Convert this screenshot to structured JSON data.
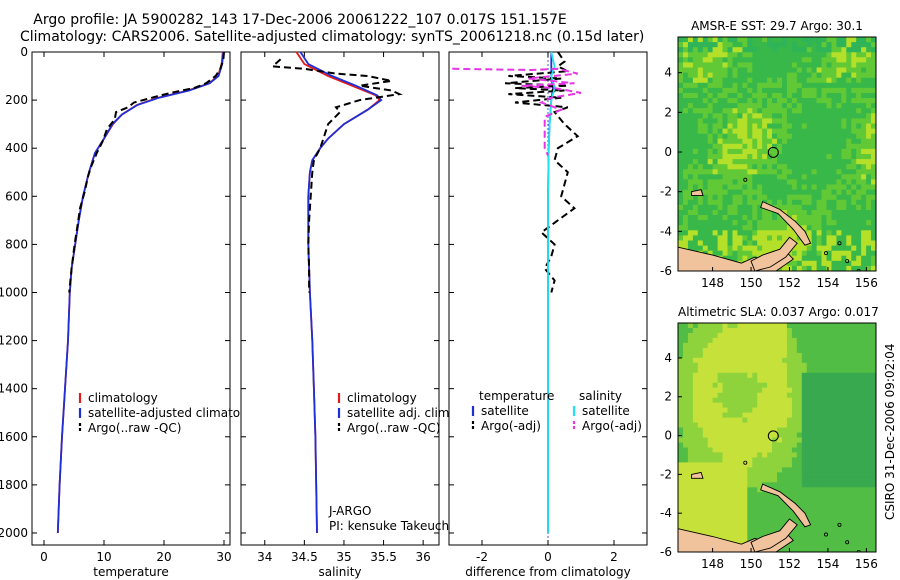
{
  "figure": {
    "title_line1": "Argo profile: JA 5900282_143 17-Dec-2006 20061222_107 0.017S 151.157E",
    "title_line2": "Climatology: CARS2006. Satellite-adjusted climatology: synTS_20061218.nc (0.15d later)",
    "footer": "CSIRO 31-Dec-2006 09:02:04"
  },
  "colors": {
    "climatology": "#e41a1c",
    "satellite": "#1f2fd6",
    "argo": "#000000",
    "salinity_satellite": "#1ee6ee",
    "salinity_argo": "#e635e6",
    "land": "#f0c39c"
  },
  "chart_data": [
    {
      "id": "temperature",
      "type": "line",
      "xlabel": "temperature",
      "ylabel": "",
      "xlim": [
        -2,
        31
      ],
      "ylim": [
        2050,
        0
      ],
      "x_ticks": [
        0,
        10,
        20,
        30
      ],
      "y_ticks": [
        0,
        200,
        400,
        600,
        800,
        1000,
        1200,
        1400,
        1600,
        1800,
        2000
      ],
      "legend": [
        {
          "label": "climatology",
          "color": "#e41a1c",
          "style": "solid"
        },
        {
          "label": "satellite-adjusted climatology",
          "color": "#1f2fd6",
          "style": "solid"
        },
        {
          "label": "Argo(..raw -QC)",
          "color": "#000000",
          "style": "dashed"
        }
      ],
      "series": [
        {
          "name": "climatology",
          "color": "#e41a1c",
          "dash": false,
          "points": [
            [
              29.8,
              0
            ],
            [
              29.6,
              50
            ],
            [
              29.0,
              100
            ],
            [
              27.5,
              130
            ],
            [
              24.0,
              160
            ],
            [
              19.0,
              190
            ],
            [
              15.5,
              220
            ],
            [
              13.0,
              260
            ],
            [
              11.5,
              300
            ],
            [
              10.0,
              360
            ],
            [
              8.5,
              420
            ],
            [
              7.5,
              500
            ],
            [
              6.5,
              600
            ],
            [
              5.8,
              700
            ],
            [
              5.2,
              800
            ],
            [
              4.6,
              900
            ],
            [
              4.3,
              1000
            ],
            [
              4.0,
              1200
            ],
            [
              3.5,
              1400
            ],
            [
              3.0,
              1600
            ],
            [
              2.6,
              1800
            ],
            [
              2.3,
              2000
            ]
          ]
        },
        {
          "name": "satellite-adjusted climatology",
          "color": "#1f2fd6",
          "dash": false,
          "points": [
            [
              29.9,
              0
            ],
            [
              29.7,
              50
            ],
            [
              29.1,
              100
            ],
            [
              27.6,
              130
            ],
            [
              24.2,
              160
            ],
            [
              19.2,
              190
            ],
            [
              15.6,
              220
            ],
            [
              13.0,
              260
            ],
            [
              11.4,
              300
            ],
            [
              10.0,
              360
            ],
            [
              8.5,
              420
            ],
            [
              7.5,
              500
            ],
            [
              6.5,
              600
            ],
            [
              5.8,
              700
            ],
            [
              5.2,
              800
            ],
            [
              4.6,
              900
            ],
            [
              4.3,
              1000
            ],
            [
              4.0,
              1200
            ],
            [
              3.5,
              1400
            ],
            [
              3.0,
              1600
            ],
            [
              2.6,
              1800
            ],
            [
              2.3,
              2000
            ]
          ]
        },
        {
          "name": "Argo(..raw -QC)",
          "color": "#000000",
          "dash": true,
          "points": [
            [
              30.0,
              0
            ],
            [
              29.9,
              30
            ],
            [
              29.4,
              70
            ],
            [
              28.6,
              100
            ],
            [
              27.0,
              130
            ],
            [
              25.0,
              150
            ],
            [
              22.0,
              165
            ],
            [
              19.5,
              180
            ],
            [
              15.0,
              210
            ],
            [
              14.0,
              230
            ],
            [
              12.0,
              250
            ],
            [
              11.8,
              280
            ],
            [
              10.5,
              320
            ],
            [
              9.8,
              370
            ],
            [
              8.8,
              420
            ],
            [
              7.8,
              480
            ],
            [
              7.3,
              520
            ],
            [
              6.8,
              580
            ],
            [
              6.0,
              650
            ],
            [
              5.6,
              720
            ],
            [
              5.1,
              800
            ],
            [
              4.6,
              900
            ],
            [
              4.2,
              1000
            ]
          ]
        }
      ]
    },
    {
      "id": "salinity",
      "type": "line",
      "xlabel": "salinity",
      "ylabel": "",
      "xlim": [
        33.7,
        36.2
      ],
      "ylim": [
        2050,
        0
      ],
      "x_ticks": [
        34,
        34.5,
        35,
        35.5,
        36
      ],
      "x_tick_labels": [
        "34",
        "34.5",
        "35",
        "35.5",
        "36"
      ],
      "legend": [
        {
          "label": "climatology",
          "color": "#e41a1c",
          "style": "solid"
        },
        {
          "label": "satellite adj. clim.",
          "color": "#1f2fd6",
          "style": "solid"
        },
        {
          "label": "Argo(..raw -QC)",
          "color": "#000000",
          "style": "dashed"
        }
      ],
      "annotation_line1": "J-ARGO",
      "annotation_line2": "PI: kensuke Takeuchi",
      "series": [
        {
          "name": "climatology",
          "color": "#e41a1c",
          "dash": false,
          "points": [
            [
              34.4,
              0
            ],
            [
              34.5,
              50
            ],
            [
              34.8,
              100
            ],
            [
              35.1,
              140
            ],
            [
              35.4,
              180
            ],
            [
              35.45,
              200
            ],
            [
              35.3,
              240
            ],
            [
              35.0,
              300
            ],
            [
              34.8,
              360
            ],
            [
              34.7,
              400
            ],
            [
              34.6,
              450
            ],
            [
              34.57,
              500
            ],
            [
              34.55,
              600
            ],
            [
              34.55,
              800
            ],
            [
              34.57,
              1000
            ],
            [
              34.6,
              1200
            ],
            [
              34.62,
              1400
            ],
            [
              34.64,
              1600
            ],
            [
              34.65,
              1800
            ],
            [
              34.66,
              2000
            ]
          ]
        },
        {
          "name": "satellite adj. clim.",
          "color": "#1f2fd6",
          "dash": false,
          "points": [
            [
              34.45,
              0
            ],
            [
              34.55,
              50
            ],
            [
              34.85,
              100
            ],
            [
              35.15,
              140
            ],
            [
              35.42,
              180
            ],
            [
              35.47,
              200
            ],
            [
              35.3,
              240
            ],
            [
              35.0,
              300
            ],
            [
              34.8,
              360
            ],
            [
              34.7,
              400
            ],
            [
              34.6,
              450
            ],
            [
              34.57,
              500
            ],
            [
              34.55,
              600
            ],
            [
              34.55,
              800
            ],
            [
              34.57,
              1000
            ],
            [
              34.6,
              1200
            ],
            [
              34.62,
              1400
            ],
            [
              34.64,
              1600
            ],
            [
              34.65,
              1800
            ],
            [
              34.66,
              2000
            ]
          ]
        },
        {
          "name": "Argo(..raw -QC)",
          "color": "#000000",
          "dash": true,
          "points": [
            [
              34.2,
              30
            ],
            [
              34.1,
              60
            ],
            [
              34.5,
              70
            ],
            [
              34.9,
              90
            ],
            [
              35.3,
              100
            ],
            [
              35.6,
              120
            ],
            [
              35.2,
              140
            ],
            [
              35.6,
              160
            ],
            [
              35.7,
              175
            ],
            [
              35.2,
              200
            ],
            [
              34.9,
              230
            ],
            [
              34.95,
              250
            ],
            [
              34.8,
              300
            ],
            [
              34.75,
              350
            ],
            [
              34.7,
              400
            ],
            [
              34.62,
              450
            ],
            [
              34.6,
              500
            ],
            [
              34.58,
              600
            ],
            [
              34.56,
              700
            ],
            [
              34.55,
              800
            ],
            [
              34.56,
              900
            ],
            [
              34.56,
              1000
            ]
          ]
        }
      ]
    },
    {
      "id": "difference",
      "type": "line",
      "xlabel": "difference from climatology",
      "ylabel": "",
      "xlim": [
        -3,
        3
      ],
      "ylim": [
        2050,
        0
      ],
      "x_ticks": [
        -2,
        0,
        2
      ],
      "legend_left_title": "temperature",
      "legend_right_title": "salinity",
      "legend": [
        {
          "label": "satellite",
          "color": "#1f2fd6",
          "style": "solid"
        },
        {
          "label": "Argo(-adj)",
          "color": "#000000",
          "style": "dashed"
        },
        {
          "label": "satellite",
          "color": "#1ee6ee",
          "style": "solid"
        },
        {
          "label": "Argo(-adj)",
          "color": "#e635e6",
          "style": "dashed"
        }
      ],
      "series": [
        {
          "name": "temperature satellite",
          "color": "#1f2fd6",
          "dash": false,
          "points": [
            [
              0.1,
              0
            ],
            [
              0.1,
              100
            ],
            [
              0.15,
              150
            ],
            [
              0.1,
              200
            ],
            [
              0.05,
              300
            ],
            [
              0.02,
              400
            ],
            [
              0,
              600
            ],
            [
              0,
              1000
            ],
            [
              0,
              1500
            ],
            [
              0,
              2000
            ]
          ]
        },
        {
          "name": "temperature Argo(-adj)",
          "color": "#000000",
          "dash": true,
          "points": [
            [
              0.3,
              0
            ],
            [
              0.5,
              40
            ],
            [
              0.3,
              60
            ],
            [
              0.6,
              80
            ],
            [
              -1.2,
              100
            ],
            [
              0.4,
              110
            ],
            [
              -1.3,
              130
            ],
            [
              0.6,
              140
            ],
            [
              -1.0,
              150
            ],
            [
              0.5,
              160
            ],
            [
              -1.2,
              175
            ],
            [
              0.4,
              190
            ],
            [
              -1.0,
              210
            ],
            [
              0.6,
              230
            ],
            [
              0.2,
              250
            ],
            [
              0.5,
              300
            ],
            [
              0.9,
              350
            ],
            [
              0.3,
              400
            ],
            [
              0.2,
              450
            ],
            [
              0.6,
              500
            ],
            [
              0.5,
              550
            ],
            [
              0.4,
              600
            ],
            [
              0.8,
              650
            ],
            [
              0.3,
              700
            ],
            [
              -0.2,
              750
            ],
            [
              0.2,
              800
            ],
            [
              0.1,
              850
            ],
            [
              -0.1,
              900
            ],
            [
              0.2,
              950
            ],
            [
              0.1,
              1000
            ]
          ]
        },
        {
          "name": "salinity satellite",
          "color": "#1ee6ee",
          "dash": false,
          "points": [
            [
              0.1,
              0
            ],
            [
              0.2,
              60
            ],
            [
              0.1,
              100
            ],
            [
              0.2,
              150
            ],
            [
              0.1,
              200
            ],
            [
              0.05,
              300
            ],
            [
              0.02,
              400
            ],
            [
              0,
              600
            ],
            [
              0,
              1000
            ],
            [
              0,
              1500
            ],
            [
              0,
              2000
            ]
          ]
        },
        {
          "name": "salinity Argo(-adj)",
          "color": "#e635e6",
          "dash": true,
          "points": [
            [
              -2.9,
              70
            ],
            [
              -0.5,
              75
            ],
            [
              0.3,
              70
            ],
            [
              0.9,
              90
            ],
            [
              -0.6,
              110
            ],
            [
              0.8,
              130
            ],
            [
              -0.8,
              140
            ],
            [
              0.2,
              150
            ],
            [
              1.0,
              170
            ],
            [
              0.1,
              190
            ],
            [
              -0.2,
              210
            ],
            [
              0.4,
              240
            ],
            [
              -0.1,
              270
            ],
            [
              -0.1,
              400
            ],
            [
              0,
              430
            ]
          ]
        }
      ]
    },
    {
      "id": "amsr-sst-map",
      "type": "heatmap",
      "title": "AMSR-E SST: 29.7 Argo: 30.1",
      "xlim": [
        146.2,
        156.5
      ],
      "ylim": [
        -6,
        5.8
      ],
      "x_ticks": [
        148,
        150,
        152,
        154,
        156
      ],
      "y_ticks": [
        -6,
        -4,
        -2,
        0,
        2,
        4
      ],
      "argo_position": [
        151.157,
        -0.017
      ]
    },
    {
      "id": "altimetric-sla-map",
      "type": "heatmap",
      "title": "Altimetric SLA: 0.037 Argo: 0.017",
      "xlim": [
        146.2,
        156.5
      ],
      "ylim": [
        -6,
        5.8
      ],
      "x_ticks": [
        148,
        150,
        152,
        154,
        156
      ],
      "y_ticks": [
        -6,
        -4,
        -2,
        0,
        2,
        4
      ],
      "argo_position": [
        151.157,
        -0.017
      ]
    }
  ]
}
